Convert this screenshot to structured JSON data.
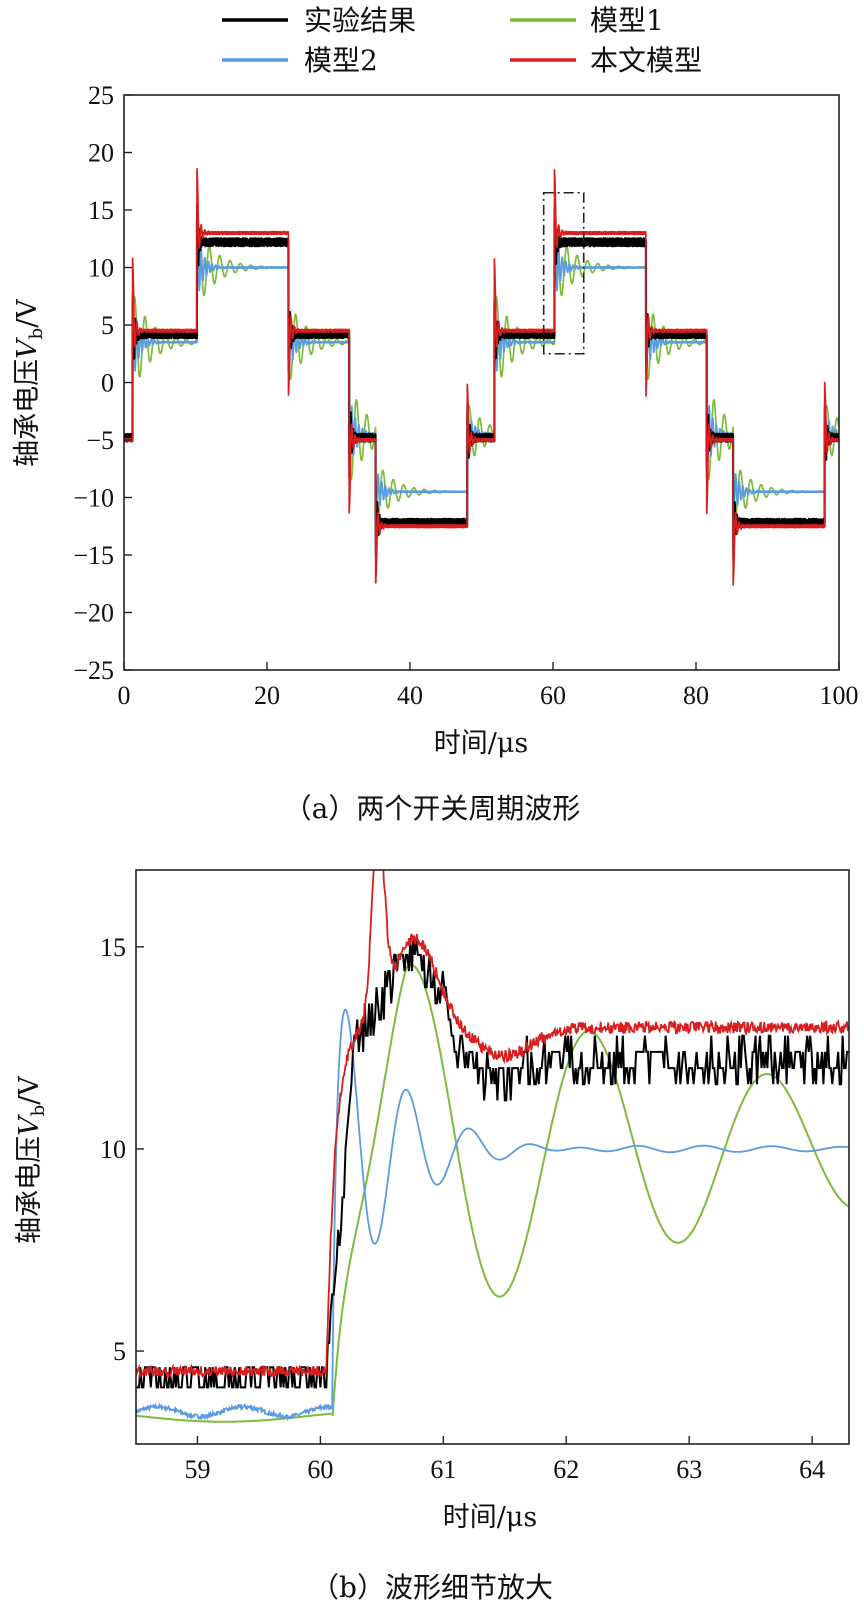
{
  "colors": {
    "experiment": "#000000",
    "model1": "#7cbc3a",
    "model2": "#5b9be0",
    "proposed": "#d81e1e"
  },
  "legend": {
    "experiment": "实验结果",
    "model1": "模型1",
    "model2": "模型2",
    "proposed": "本文模型"
  },
  "chart_data": [
    {
      "type": "line",
      "caption": "（a）两个开关周期波形",
      "xlabel": "时间/μs",
      "ylabel_prefix": "轴承电压",
      "ylabel_var": "V",
      "ylabel_sub": "b",
      "ylabel_suffix": "/V",
      "xlim": [
        0,
        100
      ],
      "ylim": [
        -25,
        25
      ],
      "x_ticks": [
        0,
        20,
        40,
        60,
        80,
        100
      ],
      "y_ticks": [
        -25,
        -20,
        -15,
        -10,
        -5,
        0,
        5,
        10,
        15,
        20,
        25
      ],
      "x_tick_labels": [
        "0",
        "20",
        "40",
        "60",
        "80",
        "100"
      ],
      "y_tick_labels": [
        "−25",
        "−20",
        "−15",
        "−10",
        "−5",
        "0",
        "5",
        "10",
        "15",
        "20",
        "25"
      ],
      "levels": {
        "experiment": [
          -4.8,
          4.2,
          12.2,
          4.2,
          -4.8,
          -12.2
        ],
        "model1": [
          -4.5,
          3.5,
          10.0,
          3.5,
          -4.5,
          -9.5
        ],
        "model2": [
          -4.5,
          3.5,
          10.0,
          3.5,
          -4.5,
          -9.5
        ],
        "proposed": [
          -5.0,
          4.5,
          13.0,
          4.5,
          -5.0,
          -12.5
        ]
      },
      "switch_times_us": [
        1.2,
        10.2,
        23.0,
        31.5,
        35.2,
        48.0,
        51.8,
        60.2,
        73.0,
        81.5,
        85.2,
        98.0
      ],
      "zoom_box": {
        "x": [
          58.7,
          64.3
        ],
        "y": [
          2.5,
          16.5
        ]
      },
      "series": [
        {
          "key": "experiment"
        },
        {
          "key": "model1"
        },
        {
          "key": "model2"
        },
        {
          "key": "proposed"
        }
      ]
    },
    {
      "type": "line",
      "caption": "（b）波形细节放大",
      "xlabel": "时间/μs",
      "ylabel_prefix": "轴承电压",
      "ylabel_var": "V",
      "ylabel_sub": "b",
      "ylabel_suffix": "/V",
      "xlim": [
        58.5,
        64.3
      ],
      "ylim": [
        2.7,
        16.9
      ],
      "x_ticks": [
        59,
        60,
        61,
        62,
        63,
        64
      ],
      "y_ticks": [
        5,
        10,
        15
      ],
      "x_tick_labels": [
        "59",
        "60",
        "61",
        "62",
        "63",
        "64"
      ],
      "y_tick_labels": [
        "5",
        "10",
        "15"
      ],
      "switch_time_us": 60.05,
      "series": [
        {
          "key": "experiment",
          "before": 4.4,
          "after": 12.2,
          "overshoot_peak": 15.0
        },
        {
          "key": "model1",
          "before": 3.4,
          "peak": 15.2,
          "peak_time": 60.75,
          "period_us": 1.45,
          "settle": 10.0,
          "troughs": [
            6.1,
            7.8
          ],
          "peaks": [
            12.8,
            11.6
          ]
        },
        {
          "key": "model2",
          "before": 3.5,
          "peak": 13.6,
          "peak_time": 60.2,
          "period_us": 0.5,
          "settle": 10.0
        },
        {
          "key": "proposed",
          "before": 4.5,
          "peak": 16.2,
          "peak_time": 60.5,
          "settle": 13.0
        }
      ]
    }
  ]
}
